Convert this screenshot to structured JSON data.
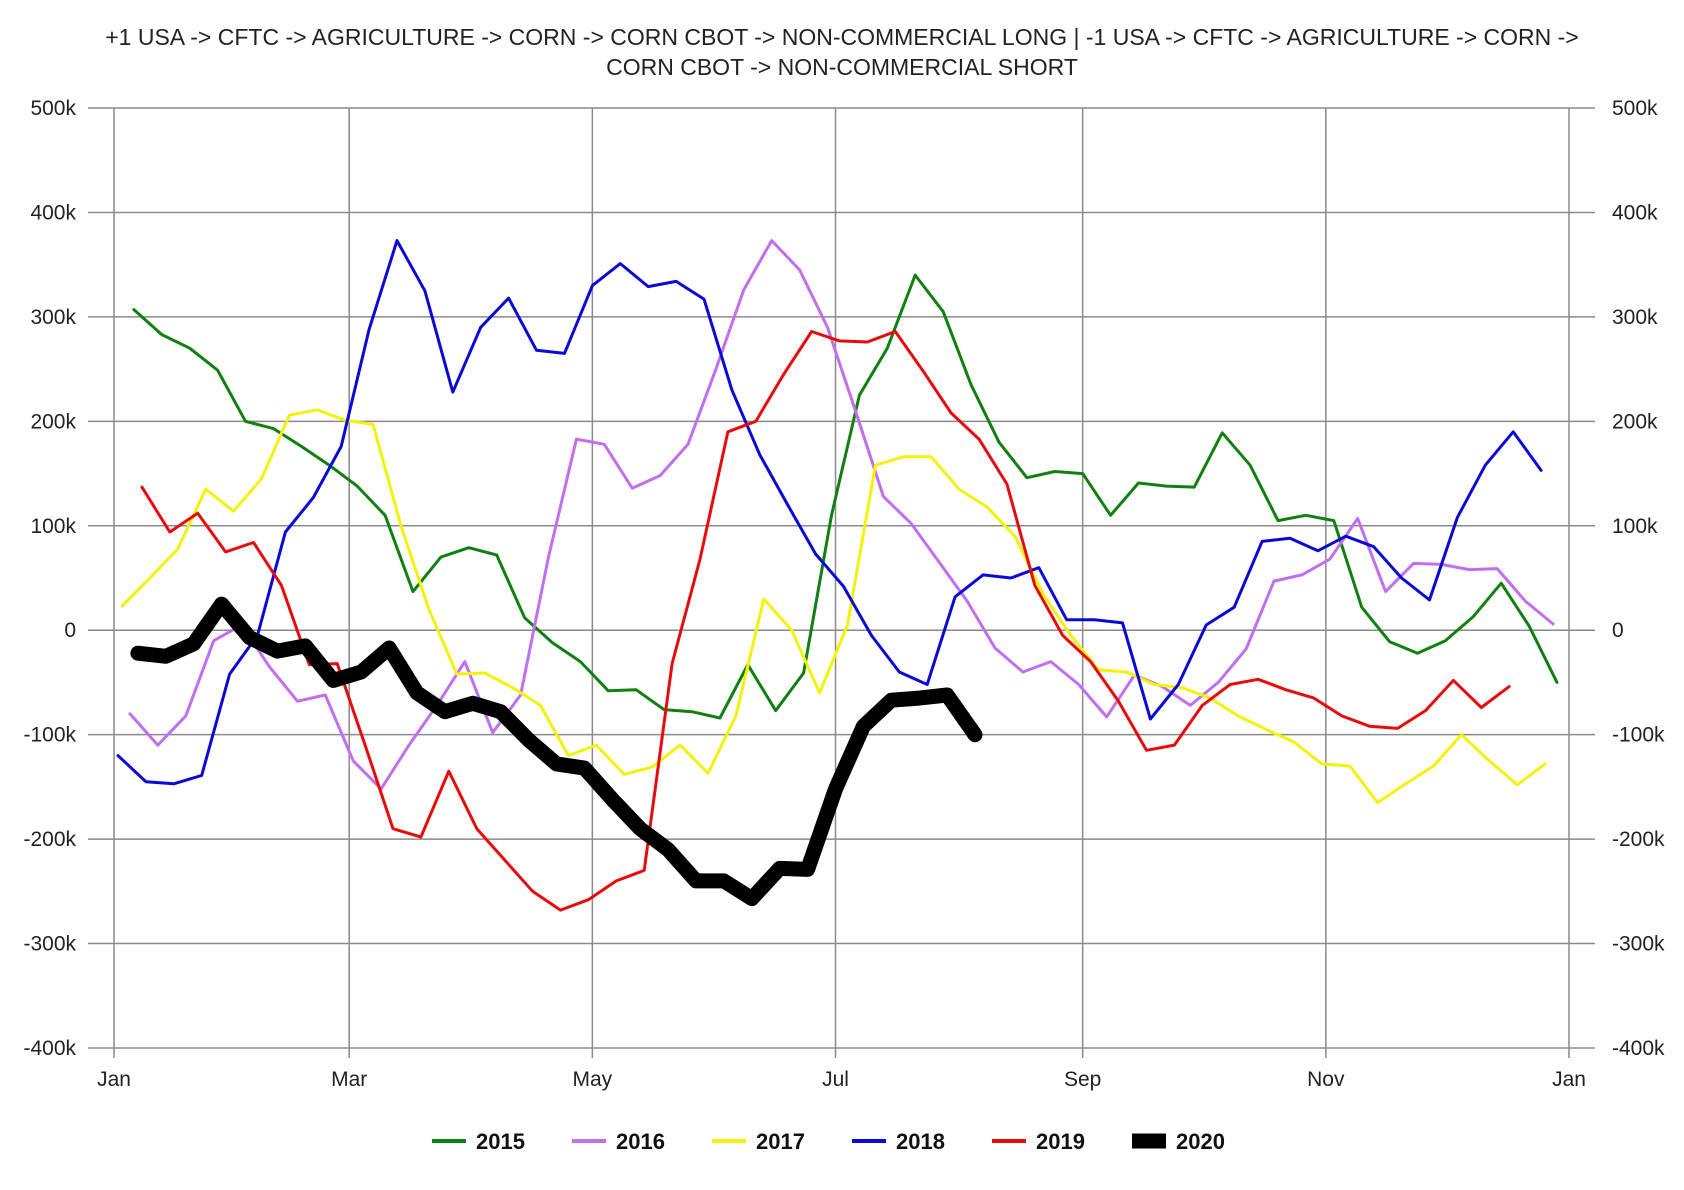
{
  "chart_data": {
    "type": "line",
    "title_lines": [
      "+1 USA -> CFTC -> AGRICULTURE -> CORN -> CORN CBOT -> NON-COMMERCIAL LONG | -1 USA -> CFTC -> AGRICULTURE -> CORN ->",
      "CORN CBOT -> NON-COMMERCIAL SHORT"
    ],
    "xlabel": "",
    "ylabel": "",
    "x_ticks": [
      "Jan",
      "Mar",
      "May",
      "Jul",
      "Sep",
      "Nov",
      "Jan"
    ],
    "y_ticks": [
      "500k",
      "400k",
      "300k",
      "200k",
      "100k",
      "0",
      "-100k",
      "-200k",
      "-300k",
      "-400k"
    ],
    "ylim": [
      -400000,
      500000
    ],
    "grid": true,
    "legend_position": "bottom",
    "series": [
      {
        "name": "2015",
        "color": "#108010",
        "width": 3,
        "x": [
          "2015-01-06",
          "2015-01-13",
          "2015-01-20",
          "2015-01-27",
          "2015-02-03",
          "2015-02-10",
          "2015-02-17",
          "2015-02-24",
          "2015-03-03",
          "2015-03-10",
          "2015-03-17",
          "2015-03-24",
          "2015-03-31",
          "2015-04-07",
          "2015-04-14",
          "2015-04-21",
          "2015-04-28",
          "2015-05-05",
          "2015-05-12",
          "2015-05-19",
          "2015-05-26",
          "2015-06-02",
          "2015-06-09",
          "2015-06-16",
          "2015-06-23",
          "2015-06-30",
          "2015-07-07",
          "2015-07-14",
          "2015-07-21",
          "2015-07-28",
          "2015-08-04",
          "2015-08-11",
          "2015-08-18",
          "2015-08-25",
          "2015-09-01",
          "2015-09-08",
          "2015-09-15",
          "2015-09-22",
          "2015-09-29",
          "2015-10-06",
          "2015-10-13",
          "2015-10-20",
          "2015-10-27",
          "2015-11-03",
          "2015-11-10",
          "2015-11-17",
          "2015-11-24",
          "2015-12-01",
          "2015-12-08",
          "2015-12-15",
          "2015-12-22",
          "2015-12-29"
        ],
        "y": [
          307000,
          283000,
          270000,
          249000,
          200000,
          193000,
          176000,
          158000,
          138000,
          110000,
          37000,
          70000,
          79000,
          72000,
          12000,
          -12000,
          -30000,
          -58000,
          -57000,
          -76000,
          -78000,
          -84000,
          -33000,
          -77000,
          -41000,
          110000,
          225000,
          270000,
          340000,
          305000,
          235000,
          180000,
          146000,
          152000,
          150000,
          110000,
          141000,
          138000,
          137000,
          189000,
          158000,
          105000,
          110000,
          105000,
          22000,
          -11000,
          -22000,
          -10000,
          13000,
          45000,
          4000,
          -50000
        ]
      },
      {
        "name": "2016",
        "color": "#c26fef",
        "width": 3,
        "x": [
          "2016-01-05",
          "2016-01-12",
          "2016-01-19",
          "2016-01-26",
          "2016-02-02",
          "2016-02-09",
          "2016-02-16",
          "2016-02-23",
          "2016-03-01",
          "2016-03-08",
          "2016-03-15",
          "2016-03-22",
          "2016-03-29",
          "2016-04-05",
          "2016-04-12",
          "2016-04-19",
          "2016-04-26",
          "2016-05-03",
          "2016-05-10",
          "2016-05-17",
          "2016-05-24",
          "2016-05-31",
          "2016-06-07",
          "2016-06-14",
          "2016-06-21",
          "2016-06-28",
          "2016-07-05",
          "2016-07-12",
          "2016-07-19",
          "2016-07-26",
          "2016-08-02",
          "2016-08-09",
          "2016-08-16",
          "2016-08-23",
          "2016-08-30",
          "2016-09-06",
          "2016-09-13",
          "2016-09-20",
          "2016-09-27",
          "2016-10-04",
          "2016-10-11",
          "2016-10-18",
          "2016-10-25",
          "2016-11-01",
          "2016-11-08",
          "2016-11-15",
          "2016-11-22",
          "2016-11-29",
          "2016-12-06",
          "2016-12-13",
          "2016-12-20",
          "2016-12-27"
        ],
        "y": [
          -80000,
          -110000,
          -82000,
          -10000,
          5000,
          -35000,
          -68000,
          -62000,
          -125000,
          -152000,
          -110000,
          -72000,
          -30000,
          -98000,
          -62000,
          70000,
          183000,
          178000,
          136000,
          148000,
          178000,
          250000,
          326000,
          373000,
          345000,
          290000,
          210000,
          128000,
          102000,
          65000,
          28000,
          -17000,
          -40000,
          -30000,
          -52000,
          -83000,
          -43000,
          -54000,
          -72000,
          -50000,
          -18000,
          47000,
          53000,
          68000,
          107000,
          37000,
          64000,
          63000,
          58000,
          59000,
          28000,
          6000
        ]
      },
      {
        "name": "2017",
        "color": "#f2f20a",
        "width": 3,
        "x": [
          "2017-01-03",
          "2017-01-10",
          "2017-01-17",
          "2017-01-24",
          "2017-01-31",
          "2017-02-07",
          "2017-02-14",
          "2017-02-21",
          "2017-02-28",
          "2017-03-07",
          "2017-03-14",
          "2017-03-21",
          "2017-03-28",
          "2017-04-04",
          "2017-04-11",
          "2017-04-18",
          "2017-04-25",
          "2017-05-02",
          "2017-05-09",
          "2017-05-16",
          "2017-05-23",
          "2017-05-30",
          "2017-06-06",
          "2017-06-13",
          "2017-06-20",
          "2017-06-27",
          "2017-07-04",
          "2017-07-11",
          "2017-07-18",
          "2017-07-25",
          "2017-08-01",
          "2017-08-08",
          "2017-08-15",
          "2017-08-22",
          "2017-08-29",
          "2017-09-05",
          "2017-09-12",
          "2017-09-19",
          "2017-09-26",
          "2017-10-03",
          "2017-10-10",
          "2017-10-17",
          "2017-10-24",
          "2017-10-31",
          "2017-11-07",
          "2017-11-14",
          "2017-11-21",
          "2017-11-28",
          "2017-12-05",
          "2017-12-12",
          "2017-12-19",
          "2017-12-26"
        ],
        "y": [
          23000,
          50000,
          78000,
          135000,
          114000,
          145000,
          206000,
          211000,
          201000,
          197000,
          100000,
          20000,
          -42000,
          -41000,
          -55000,
          -72000,
          -120000,
          -110000,
          -138000,
          -131000,
          -110000,
          -137000,
          -82000,
          30000,
          0,
          -60000,
          5000,
          158000,
          166000,
          166000,
          135000,
          118000,
          90000,
          35000,
          -5000,
          -38000,
          -40000,
          -52000,
          -55000,
          -65000,
          -82000,
          -95000,
          -107000,
          -128000,
          -130000,
          -165000,
          -147000,
          -130000,
          -100000,
          -125000,
          -148000,
          -128000
        ]
      },
      {
        "name": "2018",
        "color": "#0a0ad7",
        "width": 3,
        "x": [
          "2018-01-02",
          "2018-01-09",
          "2018-01-16",
          "2018-01-23",
          "2018-01-30",
          "2018-02-06",
          "2018-02-13",
          "2018-02-20",
          "2018-02-27",
          "2018-03-06",
          "2018-03-13",
          "2018-03-20",
          "2018-03-27",
          "2018-04-03",
          "2018-04-10",
          "2018-04-17",
          "2018-04-24",
          "2018-05-01",
          "2018-05-08",
          "2018-05-15",
          "2018-05-22",
          "2018-05-29",
          "2018-06-05",
          "2018-06-12",
          "2018-06-19",
          "2018-06-26",
          "2018-07-03",
          "2018-07-10",
          "2018-07-17",
          "2018-07-24",
          "2018-07-31",
          "2018-08-07",
          "2018-08-14",
          "2018-08-21",
          "2018-08-28",
          "2018-09-04",
          "2018-09-11",
          "2018-09-18",
          "2018-09-25",
          "2018-10-02",
          "2018-10-09",
          "2018-10-16",
          "2018-10-23",
          "2018-10-30",
          "2018-11-06",
          "2018-11-13",
          "2018-11-20",
          "2018-11-27",
          "2018-12-04",
          "2018-12-11",
          "2018-12-18",
          "2018-12-25"
        ],
        "y": [
          -120000,
          -145000,
          -147000,
          -139000,
          -42000,
          -5000,
          94000,
          127000,
          176000,
          288000,
          373000,
          325000,
          228000,
          290000,
          318000,
          268000,
          265000,
          330000,
          351000,
          329000,
          334000,
          317000,
          230000,
          168000,
          120000,
          73000,
          42000,
          -5000,
          -40000,
          -52000,
          32000,
          53000,
          50000,
          60000,
          10000,
          10000,
          7000,
          -85000,
          -52000,
          5000,
          22000,
          85000,
          88000,
          76000,
          90000,
          80000,
          50000,
          29000,
          108000,
          158000,
          190000,
          153000
        ]
      },
      {
        "name": "2019",
        "color": "#e80b0b",
        "width": 3,
        "x": [
          "2019-01-08",
          "2019-01-15",
          "2019-01-22",
          "2019-01-29",
          "2019-02-05",
          "2019-02-12",
          "2019-02-19",
          "2019-02-26",
          "2019-03-05",
          "2019-03-12",
          "2019-03-19",
          "2019-03-26",
          "2019-04-02",
          "2019-04-09",
          "2019-04-16",
          "2019-04-23",
          "2019-04-30",
          "2019-05-07",
          "2019-05-14",
          "2019-05-21",
          "2019-05-28",
          "2019-06-04",
          "2019-06-11",
          "2019-06-18",
          "2019-06-25",
          "2019-07-02",
          "2019-07-09",
          "2019-07-16",
          "2019-07-23",
          "2019-07-30",
          "2019-08-06",
          "2019-08-13",
          "2019-08-20",
          "2019-08-27",
          "2019-09-03",
          "2019-09-10",
          "2019-09-17",
          "2019-09-24",
          "2019-10-01",
          "2019-10-08",
          "2019-10-15",
          "2019-10-22",
          "2019-10-29",
          "2019-11-05",
          "2019-11-12",
          "2019-11-19",
          "2019-11-26",
          "2019-12-03",
          "2019-12-10",
          "2019-12-17"
        ],
        "y": [
          137000,
          94000,
          112000,
          75000,
          84000,
          43000,
          -33000,
          -32000,
          -110000,
          -190000,
          -198000,
          -135000,
          -190000,
          -220000,
          -250000,
          -268000,
          -258000,
          -240000,
          -230000,
          -32000,
          68000,
          190000,
          200000,
          245000,
          286000,
          277000,
          276000,
          286000,
          248000,
          208000,
          183000,
          140000,
          43000,
          -5000,
          -30000,
          -68000,
          -115000,
          -110000,
          -72000,
          -52000,
          -47000,
          -57000,
          -65000,
          -82000,
          -92000,
          -94000,
          -77000,
          -48000,
          -74000,
          -54000
        ]
      },
      {
        "name": "2020",
        "color": "#000000",
        "width": 15,
        "x": [
          "2020-01-07",
          "2020-01-14",
          "2020-01-21",
          "2020-01-28",
          "2020-02-04",
          "2020-02-11",
          "2020-02-18",
          "2020-02-25",
          "2020-03-03",
          "2020-03-10",
          "2020-03-17",
          "2020-03-24",
          "2020-03-31",
          "2020-04-07",
          "2020-04-14",
          "2020-04-21",
          "2020-04-28",
          "2020-05-05",
          "2020-05-12",
          "2020-05-19",
          "2020-05-26",
          "2020-06-02",
          "2020-06-09",
          "2020-06-16",
          "2020-06-23",
          "2020-06-30",
          "2020-07-07",
          "2020-07-14",
          "2020-07-21",
          "2020-07-28",
          "2020-08-04"
        ],
        "y": [
          -22000,
          -25000,
          -13000,
          25000,
          -7000,
          -20000,
          -15000,
          -48000,
          -40000,
          -17000,
          -60000,
          -78000,
          -70000,
          -78000,
          -105000,
          -128000,
          -132000,
          -162000,
          -190000,
          -210000,
          -240000,
          -240000,
          -257000,
          -228000,
          -229000,
          -152000,
          -92000,
          -67000,
          -65000,
          -62000,
          -100000
        ]
      }
    ]
  }
}
